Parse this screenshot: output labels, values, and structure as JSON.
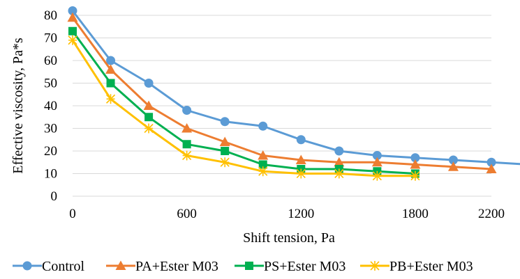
{
  "chart_data": {
    "type": "line",
    "title": "",
    "xlabel": "Shift tension, Pa",
    "ylabel": "Effective viscosity, Pa*s",
    "xlim": [
      0,
      2200
    ],
    "ylim": [
      0,
      80
    ],
    "x_ticks": [
      0,
      600,
      1200,
      1800,
      2200
    ],
    "y_ticks": [
      0,
      10,
      20,
      30,
      40,
      50,
      60,
      70,
      80
    ],
    "grid": "horizontal",
    "legend_position": "bottom",
    "series": [
      {
        "name": "Control",
        "color": "#5b9bd5",
        "marker": "circle",
        "points": [
          [
            0,
            82
          ],
          [
            200,
            60
          ],
          [
            400,
            50
          ],
          [
            600,
            38
          ],
          [
            800,
            33
          ],
          [
            1000,
            31
          ],
          [
            1200,
            25
          ],
          [
            1400,
            20
          ],
          [
            1600,
            18
          ],
          [
            1800,
            17
          ],
          [
            2000,
            16
          ],
          [
            2200,
            15
          ],
          [
            2400,
            14
          ]
        ]
      },
      {
        "name": "PA+Ester M03",
        "color": "#ed7d31",
        "marker": "triangle",
        "points": [
          [
            0,
            79
          ],
          [
            200,
            56
          ],
          [
            400,
            40
          ],
          [
            600,
            30
          ],
          [
            800,
            24
          ],
          [
            1000,
            18
          ],
          [
            1200,
            16
          ],
          [
            1400,
            15
          ],
          [
            1600,
            15
          ],
          [
            1800,
            14
          ],
          [
            2000,
            13
          ],
          [
            2200,
            12
          ]
        ]
      },
      {
        "name": "PS+Ester M03",
        "color": "#00b050",
        "marker": "square",
        "points": [
          [
            0,
            73
          ],
          [
            200,
            50
          ],
          [
            400,
            35
          ],
          [
            600,
            23
          ],
          [
            800,
            20
          ],
          [
            1000,
            14
          ],
          [
            1200,
            12
          ],
          [
            1400,
            12
          ],
          [
            1600,
            11
          ],
          [
            1800,
            10
          ]
        ]
      },
      {
        "name": "PB+Ester M03",
        "color": "#ffc000",
        "marker": "asterisk",
        "points": [
          [
            0,
            69
          ],
          [
            200,
            43
          ],
          [
            400,
            30
          ],
          [
            600,
            18
          ],
          [
            800,
            15
          ],
          [
            1000,
            11
          ],
          [
            1200,
            10
          ],
          [
            1400,
            10
          ],
          [
            1600,
            9
          ],
          [
            1800,
            9
          ]
        ]
      }
    ]
  }
}
